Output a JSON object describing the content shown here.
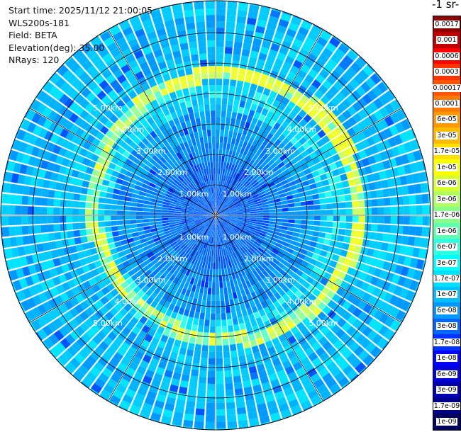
{
  "info": {
    "start_time": "Start time: 2025/11/12 21:00:05",
    "device": "WLS200s-181",
    "field": "Field: BETA",
    "elevation": "Elevation(deg): 35.00",
    "nrays": "NRays: 120"
  },
  "colorbar": {
    "unit_title": "-1 sr-",
    "labels": [
      "0.0017",
      "0.001",
      "0.0006",
      "0.0003",
      "0.00017",
      "0.0001",
      "6e-05",
      "3e-05",
      "1.7e-05",
      "1e-05",
      "6e-06",
      "3e-06",
      "1.7e-06",
      "1e-06",
      "6e-07",
      "3e-07",
      "1.7e-07",
      "1e-07",
      "6e-08",
      "3e-08",
      "1.7e-08",
      "1e-08",
      "6e-09",
      "3e-09",
      "1.7e-09",
      "1e-09"
    ],
    "colors": [
      "#8b0000",
      "#c00000",
      "#ff0000",
      "#ff3300",
      "#ff5500",
      "#ff7a00",
      "#ff9900",
      "#ffbb00",
      "#ffe000",
      "#f5ff00",
      "#d8ff30",
      "#b0ff60",
      "#88ff88",
      "#60ffb0",
      "#30ffe0",
      "#00ffff",
      "#00e0ff",
      "#00bfff",
      "#0099ff",
      "#0066ff",
      "#0033ff",
      "#0000ff",
      "#0000d8",
      "#0000b0",
      "#000088",
      "#000060"
    ]
  },
  "range_labels": {
    "r1": "1.00km",
    "r2": "2.00km",
    "r3": "3.00km",
    "r4": "4.00km",
    "r5": "5.00km"
  }
}
